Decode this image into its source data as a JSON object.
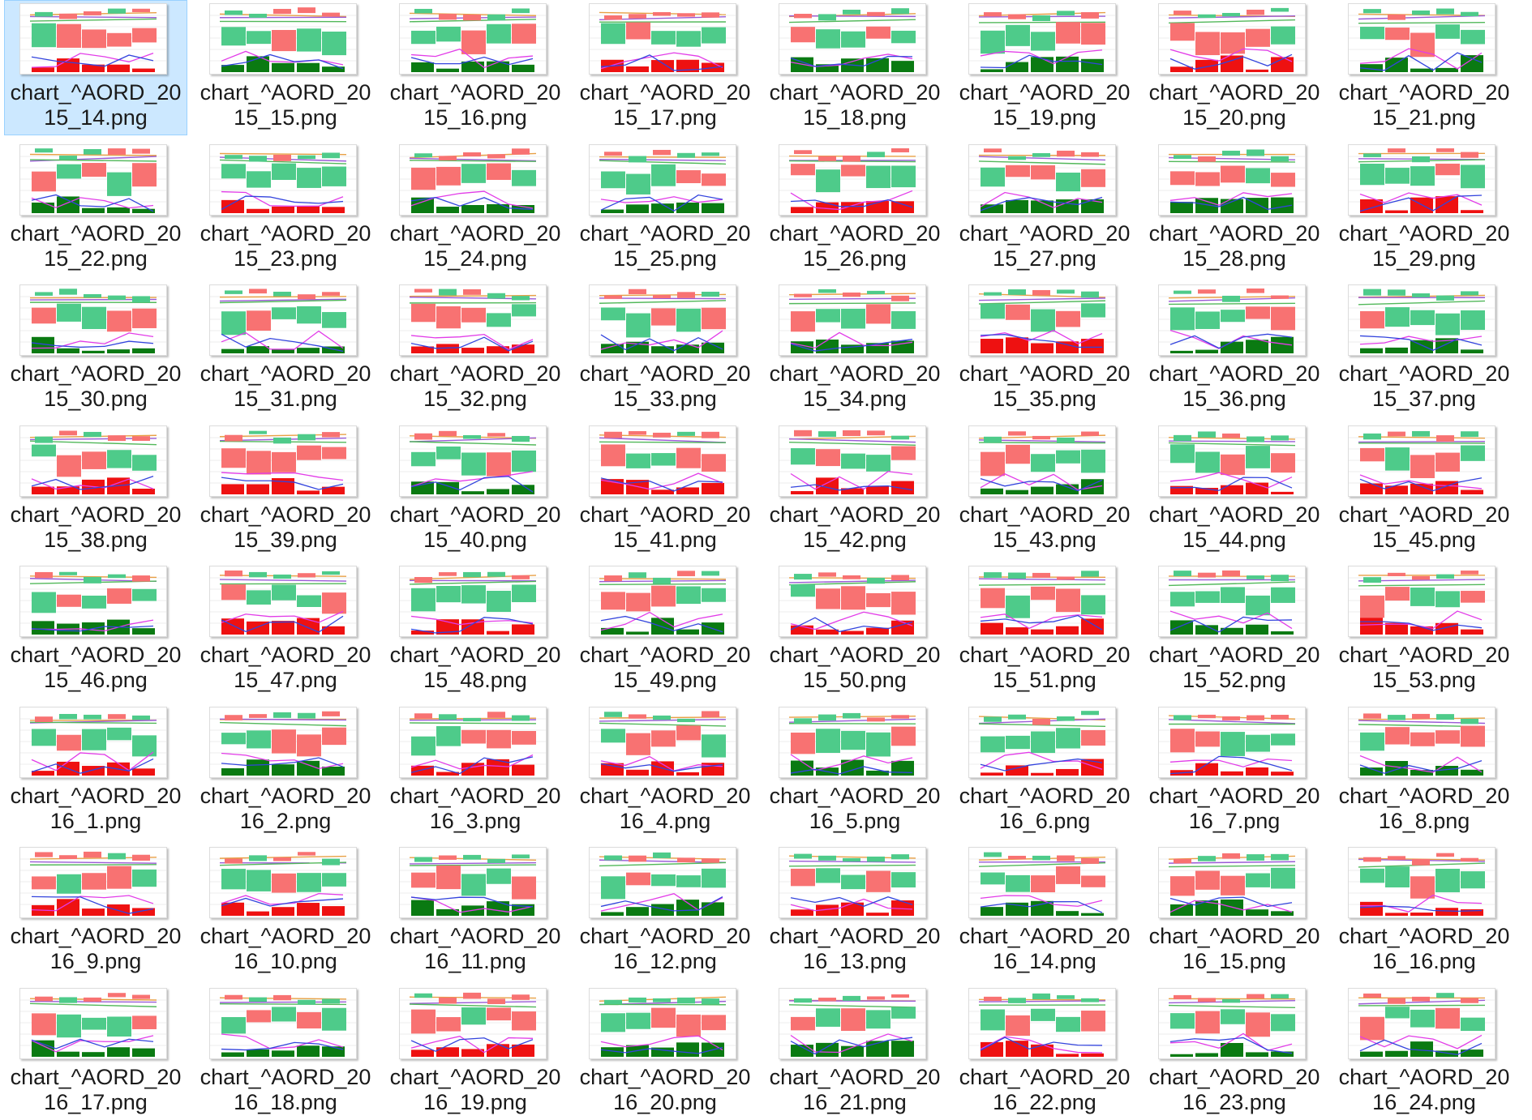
{
  "explorer": {
    "selected_index": 0,
    "files": [
      "chart_^AORD_2015_14.png",
      "chart_^AORD_2015_15.png",
      "chart_^AORD_2015_16.png",
      "chart_^AORD_2015_17.png",
      "chart_^AORD_2015_18.png",
      "chart_^AORD_2015_19.png",
      "chart_^AORD_2015_20.png",
      "chart_^AORD_2015_21.png",
      "chart_^AORD_2015_22.png",
      "chart_^AORD_2015_23.png",
      "chart_^AORD_2015_24.png",
      "chart_^AORD_2015_25.png",
      "chart_^AORD_2015_26.png",
      "chart_^AORD_2015_27.png",
      "chart_^AORD_2015_28.png",
      "chart_^AORD_2015_29.png",
      "chart_^AORD_2015_30.png",
      "chart_^AORD_2015_31.png",
      "chart_^AORD_2015_32.png",
      "chart_^AORD_2015_33.png",
      "chart_^AORD_2015_34.png",
      "chart_^AORD_2015_35.png",
      "chart_^AORD_2015_36.png",
      "chart_^AORD_2015_37.png",
      "chart_^AORD_2015_38.png",
      "chart_^AORD_2015_39.png",
      "chart_^AORD_2015_40.png",
      "chart_^AORD_2015_41.png",
      "chart_^AORD_2015_42.png",
      "chart_^AORD_2015_43.png",
      "chart_^AORD_2015_44.png",
      "chart_^AORD_2015_45.png",
      "chart_^AORD_2015_46.png",
      "chart_^AORD_2015_47.png",
      "chart_^AORD_2015_48.png",
      "chart_^AORD_2015_49.png",
      "chart_^AORD_2015_50.png",
      "chart_^AORD_2015_51.png",
      "chart_^AORD_2015_52.png",
      "chart_^AORD_2015_53.png",
      "chart_^AORD_2016_1.png",
      "chart_^AORD_2016_2.png",
      "chart_^AORD_2016_3.png",
      "chart_^AORD_2016_4.png",
      "chart_^AORD_2016_5.png",
      "chart_^AORD_2016_6.png",
      "chart_^AORD_2016_7.png",
      "chart_^AORD_2016_8.png",
      "chart_^AORD_2016_9.png",
      "chart_^AORD_2016_10.png",
      "chart_^AORD_2016_11.png",
      "chart_^AORD_2016_12.png",
      "chart_^AORD_2016_13.png",
      "chart_^AORD_2016_14.png",
      "chart_^AORD_2016_15.png",
      "chart_^AORD_2016_16.png",
      "chart_^AORD_2016_17.png",
      "chart_^AORD_2016_18.png",
      "chart_^AORD_2016_19.png",
      "chart_^AORD_2016_20.png",
      "chart_^AORD_2016_21.png",
      "chart_^AORD_2016_22.png",
      "chart_^AORD_2016_23.png",
      "chart_^AORD_2016_24.png"
    ]
  },
  "colors": {
    "candle_up": "#4ecb8a",
    "candle_down": "#f87272",
    "volume_up": "#0a7a12",
    "volume_down": "#ee1111",
    "line_magenta": "#e23ce8",
    "line_blue": "#3344dd",
    "line_orange": "#e8a045",
    "line_purple": "#9a5bd6",
    "line_green": "#52b85a",
    "selection": "#cce8ff"
  }
}
